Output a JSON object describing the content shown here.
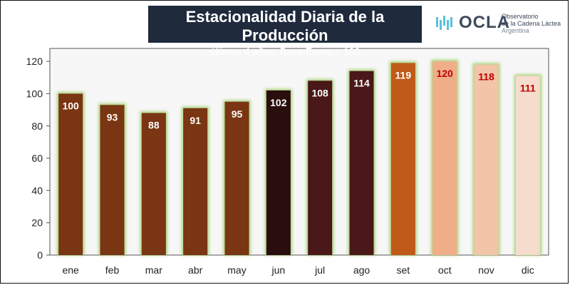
{
  "header": {
    "title": "Estacionalidad Diaria de la Producción",
    "subtitle": "- últimos 4 años, Base Enero = 100 -"
  },
  "logo": {
    "icon": "ocla-wave-icon",
    "word": "OCLA",
    "line1": "Observatorio",
    "line2": "de la Cadena Láctea",
    "line3": "Argentina"
  },
  "chart_data": {
    "type": "bar",
    "title": "Estacionalidad Diaria de la Producción",
    "subtitle": "- últimos 4 años, Base Enero = 100 -",
    "xlabel": "",
    "ylabel": "",
    "ylim": [
      0,
      120
    ],
    "yticks": [
      0,
      20,
      40,
      60,
      80,
      100,
      120
    ],
    "ytick_labels": [
      "0",
      "20",
      "40",
      "60",
      "80",
      "100",
      "120"
    ],
    "grid": false,
    "categories": [
      "ene",
      "feb",
      "mar",
      "abr",
      "may",
      "jun",
      "jul",
      "ago",
      "set",
      "oct",
      "nov",
      "dic"
    ],
    "values": [
      100,
      93,
      88,
      91,
      95,
      102,
      108,
      114,
      119,
      120,
      118,
      111
    ],
    "data_labels": [
      "100",
      "93",
      "88",
      "91",
      "95",
      "102",
      "108",
      "114",
      "119",
      "120",
      "118",
      "111"
    ],
    "bar_colors": [
      "#7a3512",
      "#7a3512",
      "#7a3512",
      "#7a3512",
      "#7a3512",
      "#2a0d0d",
      "#4a1818",
      "#4a1818",
      "#c05a18",
      "#efae88",
      "#f2c4a8",
      "#f5dccc"
    ],
    "label_colors": [
      "#ffffff",
      "#ffffff",
      "#ffffff",
      "#ffffff",
      "#ffffff",
      "#ffffff",
      "#ffffff",
      "#ffffff",
      "#ffffff",
      "#c00000",
      "#c00000",
      "#c00000"
    ],
    "bar_glow_color": "#9ccc65",
    "plot_background": "#f7f7f7"
  }
}
